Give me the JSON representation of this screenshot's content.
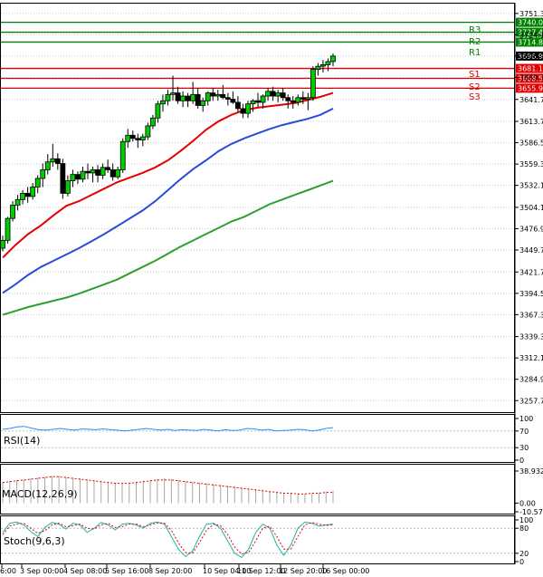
{
  "chart_data": {
    "type": "candlestick",
    "price_axis": {
      "range": [
        3243.0,
        3765.0
      ],
      "ticks": [
        "3751.30",
        "3724.10",
        "3696.97",
        "3669.70",
        "3641.70",
        "3613.70",
        "3586.50",
        "3559.30",
        "3532.10",
        "3504.10",
        "3476.90",
        "3449.70",
        "3421.70",
        "3394.50",
        "3367.30",
        "3339.30",
        "3312.10",
        "3284.90",
        "3257.70"
      ]
    },
    "time_labels": [
      "6:00",
      "3 Sep 00:00",
      "4 Sep 08:00",
      "5 Sep 16:00",
      "8 Sep 20:00",
      "10 Sep 04:00",
      "11 Sep 12:00",
      "12 Sep 20:00",
      "16 Sep 00:00"
    ],
    "last_price": "3696.97",
    "levels": [
      {
        "name": "R3",
        "value": 3727.41,
        "label": "3727.41",
        "color": "#008000"
      },
      {
        "name": "R2",
        "value": 3714.81,
        "label": "3714.81",
        "color": "#008000"
      },
      {
        "name": "R1",
        "value": 3740.01,
        "label": "3740.01",
        "color": "#008000"
      },
      {
        "name": "S1",
        "value": 3681.19,
        "label": "3681.19",
        "color": "#e00000"
      },
      {
        "name": "S2",
        "value": 3668.59,
        "label": "3668.59",
        "color": "#e00000"
      },
      {
        "name": "S3",
        "value": 3655.99,
        "label": "3655.99",
        "color": "#e00000"
      }
    ],
    "level_text": {
      "r3": "R3",
      "r2": "R2",
      "r1": "R1",
      "s1": "S1",
      "s2": "S2",
      "s3": "S3"
    },
    "candles": [
      [
        3452,
        3468,
        3448,
        3462
      ],
      [
        3462,
        3492,
        3458,
        3490
      ],
      [
        3490,
        3512,
        3486,
        3507
      ],
      [
        3507,
        3520,
        3500,
        3514
      ],
      [
        3514,
        3526,
        3508,
        3522
      ],
      [
        3522,
        3530,
        3510,
        3518
      ],
      [
        3518,
        3535,
        3514,
        3530
      ],
      [
        3530,
        3545,
        3522,
        3541
      ],
      [
        3541,
        3560,
        3530,
        3552
      ],
      [
        3552,
        3572,
        3546,
        3562
      ],
      [
        3562,
        3585,
        3556,
        3566
      ],
      [
        3566,
        3573,
        3552,
        3560
      ],
      [
        3560,
        3566,
        3515,
        3522
      ],
      [
        3522,
        3545,
        3518,
        3538
      ],
      [
        3538,
        3552,
        3530,
        3546
      ],
      [
        3546,
        3550,
        3534,
        3540
      ],
      [
        3540,
        3556,
        3536,
        3550
      ],
      [
        3550,
        3560,
        3540,
        3548
      ],
      [
        3548,
        3556,
        3536,
        3552
      ],
      [
        3552,
        3558,
        3536,
        3545
      ],
      [
        3545,
        3560,
        3540,
        3555
      ],
      [
        3555,
        3565,
        3548,
        3552
      ],
      [
        3552,
        3560,
        3538,
        3543
      ],
      [
        3543,
        3556,
        3540,
        3552
      ],
      [
        3552,
        3592,
        3548,
        3588
      ],
      [
        3588,
        3604,
        3580,
        3596
      ],
      [
        3596,
        3602,
        3588,
        3592
      ],
      [
        3592,
        3598,
        3580,
        3590
      ],
      [
        3590,
        3598,
        3582,
        3594
      ],
      [
        3594,
        3612,
        3590,
        3608
      ],
      [
        3608,
        3622,
        3604,
        3618
      ],
      [
        3618,
        3640,
        3612,
        3636
      ],
      [
        3636,
        3648,
        3626,
        3640
      ],
      [
        3640,
        3654,
        3634,
        3648
      ],
      [
        3648,
        3672,
        3640,
        3650
      ],
      [
        3650,
        3658,
        3636,
        3640
      ],
      [
        3640,
        3652,
        3632,
        3646
      ],
      [
        3646,
        3650,
        3632,
        3640
      ],
      [
        3640,
        3664,
        3636,
        3648
      ],
      [
        3648,
        3656,
        3630,
        3634
      ],
      [
        3634,
        3644,
        3626,
        3640
      ],
      [
        3640,
        3652,
        3634,
        3650
      ],
      [
        3650,
        3656,
        3640,
        3646
      ],
      [
        3646,
        3654,
        3640,
        3648
      ],
      [
        3648,
        3660,
        3642,
        3644
      ],
      [
        3644,
        3650,
        3634,
        3642
      ],
      [
        3642,
        3652,
        3636,
        3638
      ],
      [
        3638,
        3646,
        3626,
        3630
      ],
      [
        3630,
        3636,
        3618,
        3624
      ],
      [
        3624,
        3640,
        3618,
        3636
      ],
      [
        3636,
        3642,
        3626,
        3640
      ],
      [
        3640,
        3650,
        3632,
        3638
      ],
      [
        3638,
        3648,
        3630,
        3646
      ],
      [
        3646,
        3656,
        3640,
        3652
      ],
      [
        3652,
        3658,
        3640,
        3646
      ],
      [
        3646,
        3654,
        3638,
        3650
      ],
      [
        3650,
        3656,
        3640,
        3644
      ],
      [
        3644,
        3648,
        3630,
        3640
      ],
      [
        3640,
        3646,
        3630,
        3638
      ],
      [
        3638,
        3648,
        3634,
        3644
      ],
      [
        3644,
        3652,
        3636,
        3642
      ],
      [
        3642,
        3650,
        3628,
        3644
      ],
      [
        3644,
        3684,
        3640,
        3680
      ],
      [
        3680,
        3688,
        3672,
        3684
      ],
      [
        3684,
        3692,
        3676,
        3686
      ],
      [
        3686,
        3694,
        3678,
        3690
      ],
      [
        3690,
        3700,
        3684,
        3697
      ]
    ],
    "moving_averages": [
      {
        "color": "#e60000",
        "values": [
          3440,
          3456,
          3470,
          3481,
          3494,
          3506,
          3512,
          3520,
          3528,
          3536,
          3542,
          3548,
          3555,
          3564,
          3576,
          3589,
          3603,
          3614,
          3622,
          3628,
          3631,
          3633,
          3635,
          3637,
          3641,
          3645,
          3650
        ]
      },
      {
        "color": "#2a4bd7",
        "values": [
          3395,
          3406,
          3418,
          3428,
          3436,
          3444,
          3452,
          3461,
          3470,
          3480,
          3490,
          3500,
          3512,
          3526,
          3540,
          3553,
          3564,
          3576,
          3585,
          3592,
          3598,
          3604,
          3609,
          3613,
          3617,
          3622,
          3630
        ]
      },
      {
        "color": "#2ca02c",
        "values": [
          3367,
          3372,
          3377,
          3381,
          3385,
          3389,
          3394,
          3400,
          3406,
          3412,
          3420,
          3428,
          3436,
          3445,
          3454,
          3462,
          3470,
          3478,
          3486,
          3492,
          3500,
          3508,
          3514,
          3520,
          3526,
          3532,
          3538
        ]
      }
    ],
    "rsi": {
      "label": "RSI(14)",
      "scale": [
        "100",
        "70",
        "30",
        "0"
      ],
      "values": [
        74,
        76,
        80,
        81,
        77,
        73,
        72,
        74,
        76,
        74,
        72,
        75,
        74,
        73,
        75,
        73,
        72,
        70,
        72,
        74,
        76,
        74,
        72,
        74,
        71,
        73,
        72,
        71,
        74,
        72,
        70,
        73,
        71,
        72,
        76,
        75,
        72,
        74,
        70,
        71,
        72,
        74,
        73,
        70,
        72,
        76,
        78
      ]
    },
    "macd": {
      "label": "MACD(12,26,9)",
      "scale": [
        "38.932",
        "0.00",
        "-10.572"
      ],
      "histogram": [
        26,
        27,
        28,
        29,
        30,
        31,
        32,
        33,
        33,
        32,
        31,
        30,
        29,
        28,
        27,
        26,
        25,
        24,
        25,
        26,
        27,
        28,
        29,
        30,
        29,
        28,
        27,
        26,
        25,
        24,
        23,
        22,
        21,
        20,
        19,
        18,
        17,
        16,
        15,
        14,
        13,
        12,
        12,
        11,
        12,
        13,
        14,
        15
      ],
      "signal": [
        25,
        26,
        27,
        28,
        29,
        30,
        31,
        32,
        32,
        31,
        30,
        29,
        28,
        27,
        26,
        25,
        24,
        24,
        24,
        25,
        26,
        27,
        28,
        28,
        28,
        27,
        26,
        25,
        24,
        23,
        22,
        21,
        20,
        19,
        18,
        17,
        16,
        15,
        14,
        13,
        12,
        12,
        11,
        11,
        12,
        12,
        13,
        13
      ]
    },
    "stoch": {
      "label": "Stoch(9,6,3)",
      "scale": [
        "100",
        "80",
        "20",
        "0"
      ],
      "k": [
        70,
        92,
        95,
        88,
        72,
        60,
        82,
        94,
        90,
        78,
        92,
        88,
        70,
        80,
        94,
        88,
        76,
        90,
        92,
        88,
        80,
        92,
        95,
        90,
        60,
        30,
        12,
        25,
        60,
        90,
        92,
        80,
        50,
        20,
        10,
        30,
        70,
        90,
        80,
        40,
        15,
        40,
        80,
        95,
        92,
        85,
        88,
        90
      ],
      "d": [
        65,
        85,
        90,
        92,
        80,
        68,
        74,
        88,
        92,
        84,
        86,
        90,
        80,
        78,
        88,
        92,
        82,
        84,
        90,
        90,
        84,
        88,
        93,
        92,
        75,
        45,
        22,
        20,
        45,
        75,
        90,
        86,
        65,
        35,
        18,
        22,
        50,
        80,
        85,
        60,
        30,
        30,
        60,
        88,
        94,
        90,
        87,
        88
      ]
    }
  }
}
